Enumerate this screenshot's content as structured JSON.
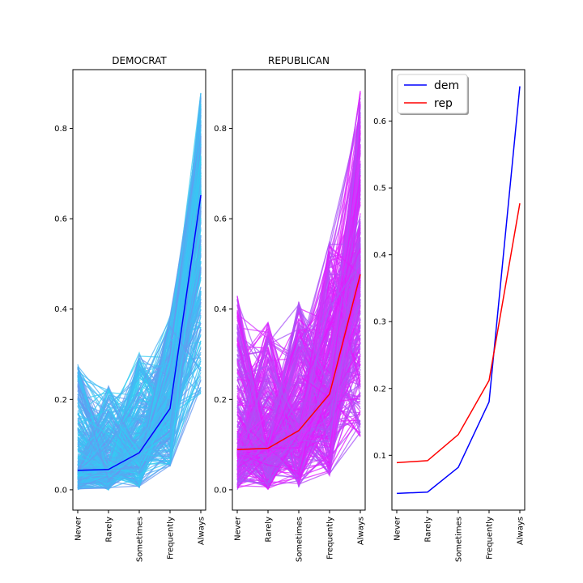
{
  "chart_data": [
    {
      "type": "line",
      "title": "DEMOCRAT",
      "categories": [
        "Never",
        "Rarely",
        "Sometimes",
        "Frequently",
        "Always"
      ],
      "ylim": [
        -0.045,
        0.93
      ],
      "yticks": [
        0.0,
        0.2,
        0.4,
        0.6,
        0.8
      ],
      "ytick_labels": [
        "0.0",
        "0.2",
        "0.4",
        "0.6",
        "0.8"
      ],
      "background_lines": {
        "count": 400,
        "colors": [
          "#33ccf2",
          "#4db2f2",
          "#6699f0",
          "#3fbff5"
        ],
        "band_low": [
          0.0,
          0.0,
          0.005,
          0.05,
          0.21
        ],
        "band_high": [
          0.28,
          0.23,
          0.31,
          0.39,
          0.88
        ]
      },
      "series": [
        {
          "name": "",
          "values": [
            0.043,
            0.045,
            0.082,
            0.18,
            0.652
          ],
          "color": "#0000ff"
        }
      ],
      "grid": false
    },
    {
      "type": "line",
      "title": "REPUBLICAN",
      "categories": [
        "Never",
        "Rarely",
        "Sometimes",
        "Frequently",
        "Always"
      ],
      "ylim": [
        -0.045,
        0.93
      ],
      "yticks": [
        0.0,
        0.2,
        0.4,
        0.6,
        0.8
      ],
      "ytick_labels": [
        "0.0",
        "0.2",
        "0.4",
        "0.6",
        "0.8"
      ],
      "background_lines": {
        "count": 400,
        "colors": [
          "#d633ff",
          "#b847f5",
          "#e11aff",
          "#a855f7"
        ],
        "band_low": [
          0.0,
          0.0,
          0.005,
          0.03,
          0.11
        ],
        "band_high": [
          0.43,
          0.38,
          0.42,
          0.55,
          0.885
        ]
      },
      "series": [
        {
          "name": "",
          "values": [
            0.089,
            0.092,
            0.131,
            0.212,
            0.477
          ],
          "color": "#ff0000"
        }
      ],
      "grid": false
    },
    {
      "type": "line",
      "title": "",
      "categories": [
        "Never",
        "Rarely",
        "Sometimes",
        "Frequently",
        "Always"
      ],
      "ylim": [
        0.018,
        0.677
      ],
      "yticks": [
        0.1,
        0.2,
        0.3,
        0.4,
        0.5,
        0.6
      ],
      "ytick_labels": [
        "0.1",
        "0.2",
        "0.3",
        "0.4",
        "0.5",
        "0.6"
      ],
      "legend_position": "upper-left",
      "series": [
        {
          "name": "dem",
          "values": [
            0.043,
            0.045,
            0.082,
            0.18,
            0.652
          ],
          "color": "#0000ff"
        },
        {
          "name": "rep",
          "values": [
            0.089,
            0.092,
            0.131,
            0.212,
            0.477
          ],
          "color": "#ff0000"
        }
      ],
      "grid": false
    }
  ]
}
